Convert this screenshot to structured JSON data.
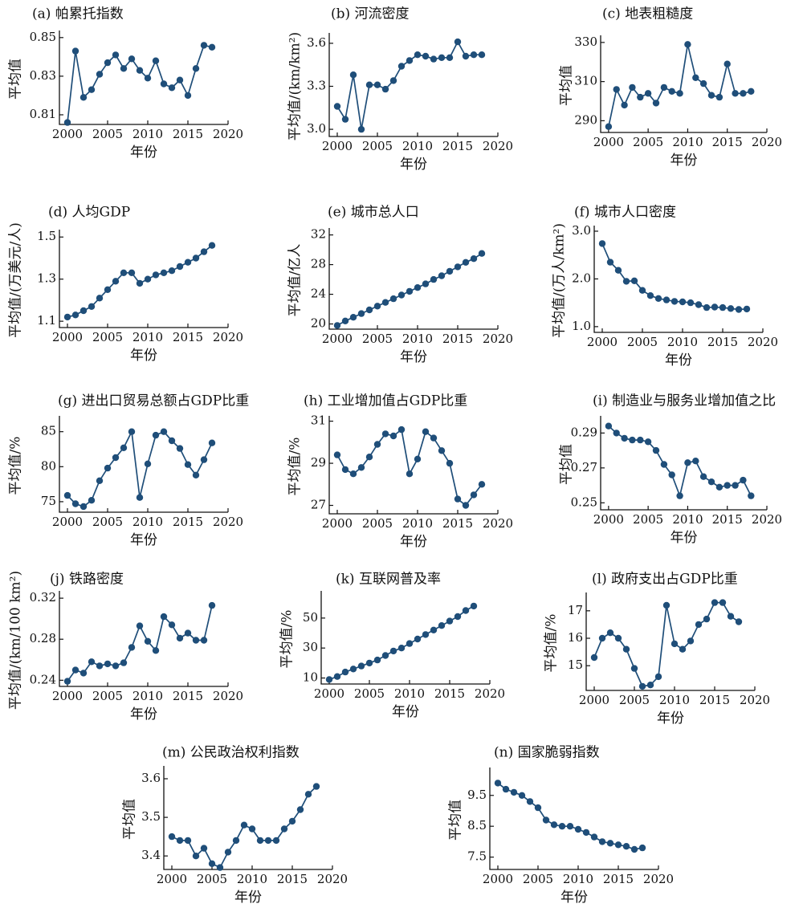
{
  "colors": {
    "series": "#1f4e79",
    "axis": "#111111"
  },
  "chart_data": [
    {
      "type": "line",
      "title": "(a) 帕累托指数",
      "xlabel": "年份",
      "ylabel": "平均值",
      "xlim": [
        1999,
        2020
      ],
      "xticks": [
        2000,
        2005,
        2010,
        2015,
        2020
      ],
      "ylim": [
        0.805,
        0.852
      ],
      "yticks": [
        "0.81",
        "0.83",
        "0.85"
      ],
      "grid": false,
      "x": [
        2000,
        2001,
        2002,
        2003,
        2004,
        2005,
        2006,
        2007,
        2008,
        2009,
        2010,
        2011,
        2012,
        2013,
        2014,
        2015,
        2016,
        2017,
        2018
      ],
      "values": [
        0.806,
        0.843,
        0.819,
        0.823,
        0.831,
        0.837,
        0.841,
        0.834,
        0.839,
        0.833,
        0.829,
        0.838,
        0.826,
        0.824,
        0.828,
        0.82,
        0.834,
        0.846,
        0.845
      ]
    },
    {
      "type": "line",
      "title": "(b) 河流密度",
      "xlabel": "年份",
      "ylabel": "平均值/(km/km²)",
      "xlim": [
        1999,
        2020
      ],
      "xticks": [
        2000,
        2005,
        2010,
        2015,
        2020
      ],
      "ylim": [
        2.95,
        3.65
      ],
      "yticks": [
        "3.0",
        "3.3",
        "3.6"
      ],
      "grid": false,
      "x": [
        2000,
        2001,
        2002,
        2003,
        2004,
        2005,
        2006,
        2007,
        2008,
        2009,
        2010,
        2011,
        2012,
        2013,
        2014,
        2015,
        2016,
        2017,
        2018
      ],
      "values": [
        3.16,
        3.07,
        3.38,
        3.0,
        3.31,
        3.31,
        3.28,
        3.34,
        3.44,
        3.48,
        3.52,
        3.51,
        3.49,
        3.5,
        3.5,
        3.61,
        3.51,
        3.52,
        3.52
      ]
    },
    {
      "type": "line",
      "title": "(c) 地表粗糙度",
      "xlabel": "年份",
      "ylabel": "平均值",
      "xlim": [
        1999,
        2020
      ],
      "xticks": [
        2000,
        2005,
        2010,
        2015,
        2020
      ],
      "ylim": [
        284,
        332
      ],
      "yticks": [
        "290",
        "310",
        "330"
      ],
      "grid": false,
      "x": [
        2000,
        2001,
        2002,
        2003,
        2004,
        2005,
        2006,
        2007,
        2008,
        2009,
        2010,
        2011,
        2012,
        2013,
        2014,
        2015,
        2016,
        2017,
        2018
      ],
      "values": [
        287,
        306,
        298,
        307,
        302,
        304,
        299,
        307,
        305,
        304,
        329,
        312,
        309,
        303,
        302,
        319,
        304,
        304,
        305
      ]
    },
    {
      "type": "line",
      "title": "(d) 人均GDP",
      "xlabel": "年份",
      "ylabel": "平均值/(万美元/人)",
      "xlim": [
        1999,
        2020
      ],
      "xticks": [
        2000,
        2005,
        2010,
        2015,
        2020
      ],
      "ylim": [
        1.07,
        1.52
      ],
      "yticks": [
        "1.1",
        "1.3",
        "1.5"
      ],
      "grid": false,
      "x": [
        2000,
        2001,
        2002,
        2003,
        2004,
        2005,
        2006,
        2007,
        2008,
        2009,
        2010,
        2011,
        2012,
        2013,
        2014,
        2015,
        2016,
        2017,
        2018
      ],
      "values": [
        1.12,
        1.13,
        1.15,
        1.17,
        1.21,
        1.25,
        1.29,
        1.33,
        1.33,
        1.28,
        1.3,
        1.32,
        1.33,
        1.34,
        1.36,
        1.38,
        1.4,
        1.43,
        1.46
      ]
    },
    {
      "type": "line",
      "title": "(e) 城市总人口",
      "xlabel": "年份",
      "ylabel": "平均值/亿人",
      "xlim": [
        1999,
        2020
      ],
      "xticks": [
        2000,
        2005,
        2010,
        2015,
        2020
      ],
      "ylim": [
        19.3,
        32.5
      ],
      "yticks": [
        "20",
        "24",
        "28",
        "32"
      ],
      "grid": false,
      "x": [
        2000,
        2001,
        2002,
        2003,
        2004,
        2005,
        2006,
        2007,
        2008,
        2009,
        2010,
        2011,
        2012,
        2013,
        2014,
        2015,
        2016,
        2017,
        2018
      ],
      "values": [
        19.8,
        20.4,
        20.9,
        21.4,
        21.9,
        22.4,
        22.9,
        23.4,
        23.9,
        24.4,
        24.9,
        25.4,
        26.0,
        26.5,
        27.1,
        27.7,
        28.3,
        28.8,
        29.5
      ]
    },
    {
      "type": "line",
      "title": "(f) 城市人口密度",
      "xlabel": "年份",
      "ylabel": "平均值/(万人/km²)",
      "xlim": [
        1999,
        2020
      ],
      "xticks": [
        2000,
        2005,
        2010,
        2015,
        2020
      ],
      "ylim": [
        0.88,
        3.05
      ],
      "yticks": [
        "1.0",
        "2.0",
        "3.0"
      ],
      "grid": false,
      "x": [
        2000,
        2001,
        2002,
        2003,
        2004,
        2005,
        2006,
        2007,
        2008,
        2009,
        2010,
        2011,
        2012,
        2013,
        2014,
        2015,
        2016,
        2017,
        2018
      ],
      "values": [
        2.74,
        2.35,
        2.18,
        1.95,
        1.96,
        1.76,
        1.65,
        1.59,
        1.56,
        1.53,
        1.52,
        1.5,
        1.46,
        1.4,
        1.41,
        1.4,
        1.38,
        1.36,
        1.37
      ]
    },
    {
      "type": "line",
      "title": "(g) 进出口贸易总额占GDP比重",
      "xlabel": "年份",
      "ylabel": "平均值/%",
      "xlim": [
        1999,
        2020
      ],
      "xticks": [
        2000,
        2005,
        2010,
        2015,
        2020
      ],
      "ylim": [
        73.5,
        86.8
      ],
      "yticks": [
        "75",
        "80",
        "85"
      ],
      "grid": false,
      "x": [
        2000,
        2001,
        2002,
        2003,
        2004,
        2005,
        2006,
        2007,
        2008,
        2009,
        2010,
        2011,
        2012,
        2013,
        2014,
        2015,
        2016,
        2017,
        2018
      ],
      "values": [
        75.9,
        74.7,
        74.3,
        75.2,
        78.0,
        79.8,
        81.3,
        82.7,
        85.0,
        75.6,
        80.4,
        84.5,
        85.0,
        83.7,
        82.6,
        80.3,
        78.8,
        81.0,
        83.4
      ]
    },
    {
      "type": "line",
      "title": "(h) 工业增加值占GDP比重",
      "xlabel": "年份",
      "ylabel": "平均值/%",
      "xlim": [
        1999,
        2020
      ],
      "xticks": [
        2000,
        2005,
        2010,
        2015,
        2020
      ],
      "ylim": [
        26.6,
        31.1
      ],
      "yticks": [
        "27",
        "29",
        "31"
      ],
      "grid": false,
      "x": [
        2000,
        2001,
        2002,
        2003,
        2004,
        2005,
        2006,
        2007,
        2008,
        2009,
        2010,
        2011,
        2012,
        2013,
        2014,
        2015,
        2016,
        2017,
        2018
      ],
      "values": [
        29.4,
        28.7,
        28.5,
        28.8,
        29.3,
        29.9,
        30.4,
        30.3,
        30.6,
        28.5,
        29.2,
        30.5,
        30.2,
        29.6,
        29.0,
        27.3,
        27.0,
        27.5,
        28.0
      ]
    },
    {
      "type": "line",
      "title": "(i) 制造业与服务业增加值之比",
      "xlabel": "年份",
      "ylabel": "平均值",
      "xlim": [
        1999,
        2020
      ],
      "xticks": [
        2000,
        2005,
        2010,
        2015,
        2020
      ],
      "ylim": [
        0.246,
        0.298
      ],
      "yticks": [
        "0.25",
        "0.27",
        "0.29"
      ],
      "grid": false,
      "x": [
        2000,
        2001,
        2002,
        2003,
        2004,
        2005,
        2006,
        2007,
        2008,
        2009,
        2010,
        2011,
        2012,
        2013,
        2014,
        2015,
        2016,
        2017,
        2018
      ],
      "values": [
        0.294,
        0.29,
        0.287,
        0.286,
        0.286,
        0.285,
        0.28,
        0.272,
        0.266,
        0.254,
        0.273,
        0.274,
        0.265,
        0.262,
        0.259,
        0.26,
        0.26,
        0.263,
        0.254
      ]
    },
    {
      "type": "line",
      "title": "(j) 铁路密度",
      "xlabel": "年份",
      "ylabel": "平均值/(km/100 km²)",
      "xlim": [
        1999,
        2020
      ],
      "xticks": [
        2000,
        2005,
        2010,
        2015,
        2020
      ],
      "ylim": [
        0.234,
        0.324
      ],
      "yticks": [
        "0.24",
        "0.28",
        "0.32"
      ],
      "grid": false,
      "x": [
        2000,
        2001,
        2002,
        2003,
        2004,
        2005,
        2006,
        2007,
        2008,
        2009,
        2010,
        2011,
        2012,
        2013,
        2014,
        2015,
        2016,
        2017,
        2018
      ],
      "values": [
        0.239,
        0.25,
        0.247,
        0.258,
        0.254,
        0.256,
        0.254,
        0.257,
        0.272,
        0.293,
        0.278,
        0.269,
        0.302,
        0.294,
        0.281,
        0.286,
        0.279,
        0.279,
        0.313
      ]
    },
    {
      "type": "line",
      "title": "(k) 互联网普及率",
      "xlabel": "年份",
      "ylabel": "平均值/%",
      "xlim": [
        1999,
        2020
      ],
      "xticks": [
        2000,
        2005,
        2010,
        2015,
        2020
      ],
      "ylim": [
        6,
        66
      ],
      "yticks": [
        "10",
        "30",
        "50"
      ],
      "grid": false,
      "x": [
        2000,
        2001,
        2002,
        2003,
        2004,
        2005,
        2006,
        2007,
        2008,
        2009,
        2010,
        2011,
        2012,
        2013,
        2014,
        2015,
        2016,
        2017,
        2018
      ],
      "values": [
        9,
        11,
        14,
        16,
        18,
        20,
        22,
        25,
        28,
        30,
        33,
        36,
        39,
        42,
        45,
        48,
        51,
        55,
        58
      ]
    },
    {
      "type": "line",
      "title": "(l) 政府支出占GDP比重",
      "xlabel": "年份",
      "ylabel": "平均值/%",
      "xlim": [
        1999,
        2020
      ],
      "xticks": [
        2000,
        2005,
        2010,
        2015,
        2020
      ],
      "ylim": [
        14.1,
        17.55
      ],
      "yticks": [
        "15",
        "16",
        "17"
      ],
      "grid": false,
      "x": [
        2000,
        2001,
        2002,
        2003,
        2004,
        2005,
        2006,
        2007,
        2008,
        2009,
        2010,
        2011,
        2012,
        2013,
        2014,
        2015,
        2016,
        2017,
        2018
      ],
      "values": [
        15.3,
        16.0,
        16.2,
        16.0,
        15.6,
        14.9,
        14.25,
        14.3,
        14.6,
        17.2,
        15.8,
        15.6,
        15.9,
        16.5,
        16.7,
        17.3,
        17.3,
        16.8,
        16.6
      ]
    },
    {
      "type": "line",
      "title": "(m) 公民政治权利指数",
      "xlabel": "年份",
      "ylabel": "平均值",
      "xlim": [
        1999,
        2020
      ],
      "xticks": [
        2000,
        2005,
        2010,
        2015,
        2020
      ],
      "ylim": [
        3.365,
        3.625
      ],
      "yticks": [
        "3.4",
        "3.5",
        "3.6"
      ],
      "grid": false,
      "x": [
        2000,
        2001,
        2002,
        2003,
        2004,
        2005,
        2006,
        2007,
        2008,
        2009,
        2010,
        2011,
        2012,
        2013,
        2014,
        2015,
        2016,
        2017,
        2018
      ],
      "values": [
        3.45,
        3.44,
        3.44,
        3.4,
        3.42,
        3.38,
        3.37,
        3.41,
        3.44,
        3.48,
        3.47,
        3.44,
        3.44,
        3.44,
        3.47,
        3.49,
        3.52,
        3.56,
        3.58
      ]
    },
    {
      "type": "line",
      "title": "(n) 国家脆弱指数",
      "xlabel": "年份",
      "ylabel": "平均值",
      "xlim": [
        1999,
        2020
      ],
      "xticks": [
        2000,
        2005,
        2010,
        2015,
        2020
      ],
      "ylim": [
        7.1,
        10.3
      ],
      "yticks": [
        "7.5",
        "8.5",
        "9.5"
      ],
      "grid": false,
      "x": [
        2000,
        2001,
        2002,
        2003,
        2004,
        2005,
        2006,
        2007,
        2008,
        2009,
        2010,
        2011,
        2012,
        2013,
        2014,
        2015,
        2016,
        2017,
        2018
      ],
      "values": [
        9.9,
        9.7,
        9.6,
        9.5,
        9.3,
        9.1,
        8.7,
        8.55,
        8.5,
        8.5,
        8.4,
        8.3,
        8.15,
        8.0,
        7.95,
        7.9,
        7.85,
        7.75,
        7.8
      ]
    }
  ]
}
